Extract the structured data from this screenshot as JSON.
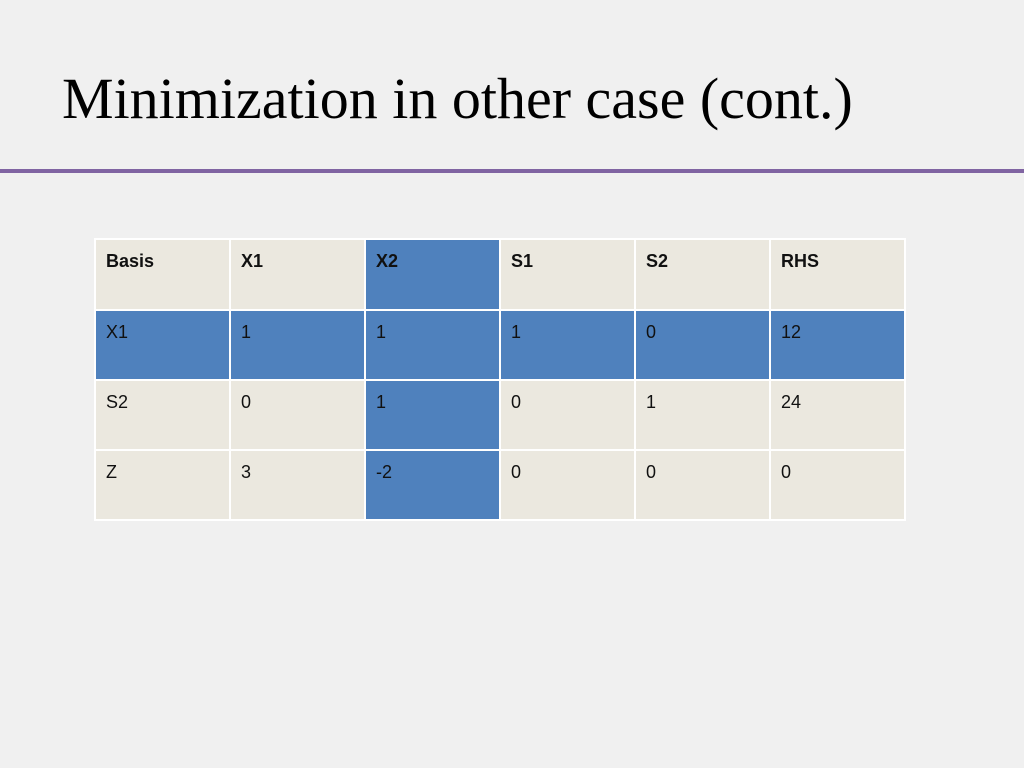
{
  "slide": {
    "title": "Minimization in other case (cont.)"
  },
  "table": {
    "headers": [
      "Basis",
      "X1",
      "X2",
      "S1",
      "S2",
      "RHS"
    ],
    "rows": [
      [
        "X1",
        "1",
        "1",
        "1",
        "0",
        "12"
      ],
      [
        "S2",
        "0",
        "1",
        "0",
        "1",
        "24"
      ],
      [
        "Z",
        "3",
        "-2",
        "0",
        "0",
        "0"
      ]
    ],
    "pivot_column": "X2",
    "pivot_row": "X1"
  },
  "colors": {
    "background": "#f0f0f0",
    "accent_rule": "#8064a2",
    "highlight": "#4f81bd",
    "cell": "#ebe8df"
  }
}
